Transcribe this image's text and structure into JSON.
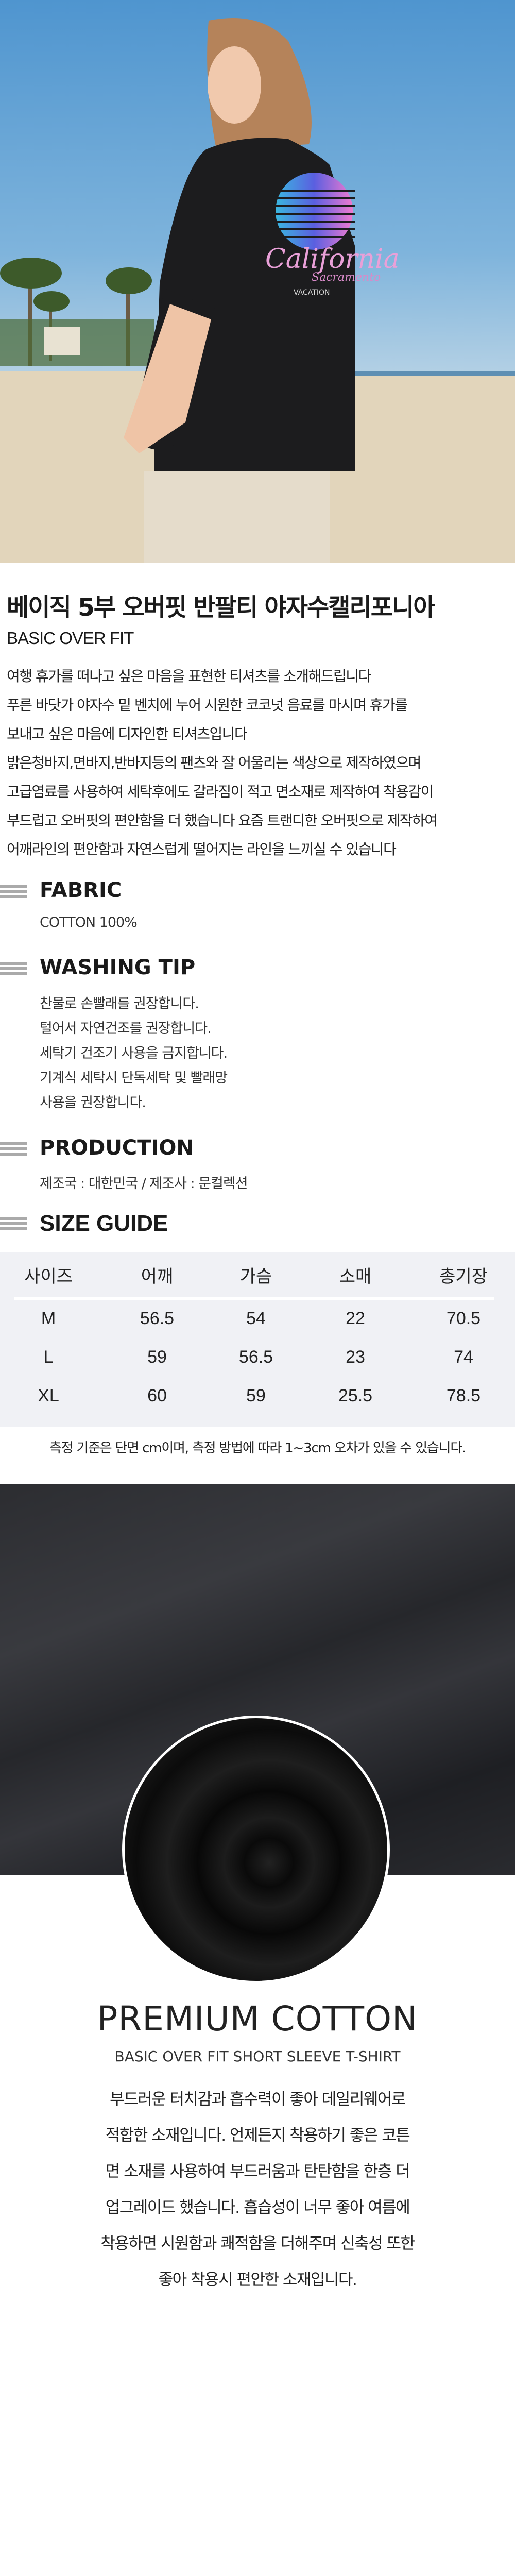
{
  "hero": {
    "print_text": [
      "California",
      "Sacramento",
      "VACATION"
    ]
  },
  "product": {
    "title": "베이직 5부 오버핏 반팔티 야자수캘리포니아",
    "subtitle": "BASIC OVER FIT",
    "description": [
      "여행 휴가를 떠나고 싶은 마음을 표현한 티셔츠를 소개해드립니다",
      "푸른 바닷가 야자수 밑 벤치에 누어 시원한 코코넛 음료를 마시며 휴가를",
      "보내고 싶은 마음에 디자인한 티셔츠입니다",
      "밝은청바지,면바지,반바지등의 팬츠와 잘 어울리는 색상으로 제작하였으며",
      "고급염료를 사용하여 세탁후에도 갈라짐이 적고 면소재로 제작하여 착용감이",
      "부드럽고 오버핏의 편안함을 더 했습니다 요즘 트랜디한 오버핏으로 제작하여",
      "어깨라인의 편안함과 자연스럽게 떨어지는 라인을 느끼실 수 있습니다"
    ]
  },
  "fabric": {
    "heading": "FABRIC",
    "text": "COTTON 100%"
  },
  "washing": {
    "heading": "WASHING TIP",
    "lines": [
      "찬물로 손빨래를 권장합니다.",
      "털어서 자연건조를 권장합니다.",
      "세탁기 건조기 사용을 금지합니다.",
      "기계식 세탁시 단독세탁 및 빨래망",
      "사용을 권장합니다."
    ]
  },
  "production": {
    "heading": "PRODUCTION",
    "text": "제조국 : 대한민국 / 제조사 : 문컬렉션"
  },
  "size_guide": {
    "heading": "SIZE GUIDE",
    "columns": [
      "사이즈",
      "어깨",
      "가슴",
      "소매",
      "총기장"
    ],
    "rows": [
      [
        "M",
        "56.5",
        "54",
        "22",
        "70.5"
      ],
      [
        "L",
        "59",
        "56.5",
        "23",
        "74"
      ],
      [
        "XL",
        "60",
        "59",
        "25.5",
        "78.5"
      ]
    ],
    "note": "측정 기준은 단면 cm이며, 측정 방법에 따라 1~3cm 오차가 있을 수 있습니다."
  },
  "premium": {
    "heading": "PREMIUM COTTON",
    "subheading": "BASIC OVER FIT SHORT SLEEVE T-SHIRT",
    "lines": [
      "부드러운 터치감과 흡수력이 좋아  데일리웨어로",
      "적합한 소재입니다. 언제든지 착용하기 좋은 코튼",
      "면 소재를 사용하여 부드러움과 탄탄함을 한층 더",
      "업그레이드 했습니다. 흡습성이 너무 좋아 여름에",
      "착용하면 시원함과 쾌적함을 더해주며 신축성 또한",
      "좋아 착용시 편안한 소재입니다."
    ]
  },
  "colors": {
    "section_icon": "#aaaaaa",
    "table_bg": "#f0f1f5",
    "text": "#1a1a1a",
    "shirt": "#1c1c1e"
  }
}
